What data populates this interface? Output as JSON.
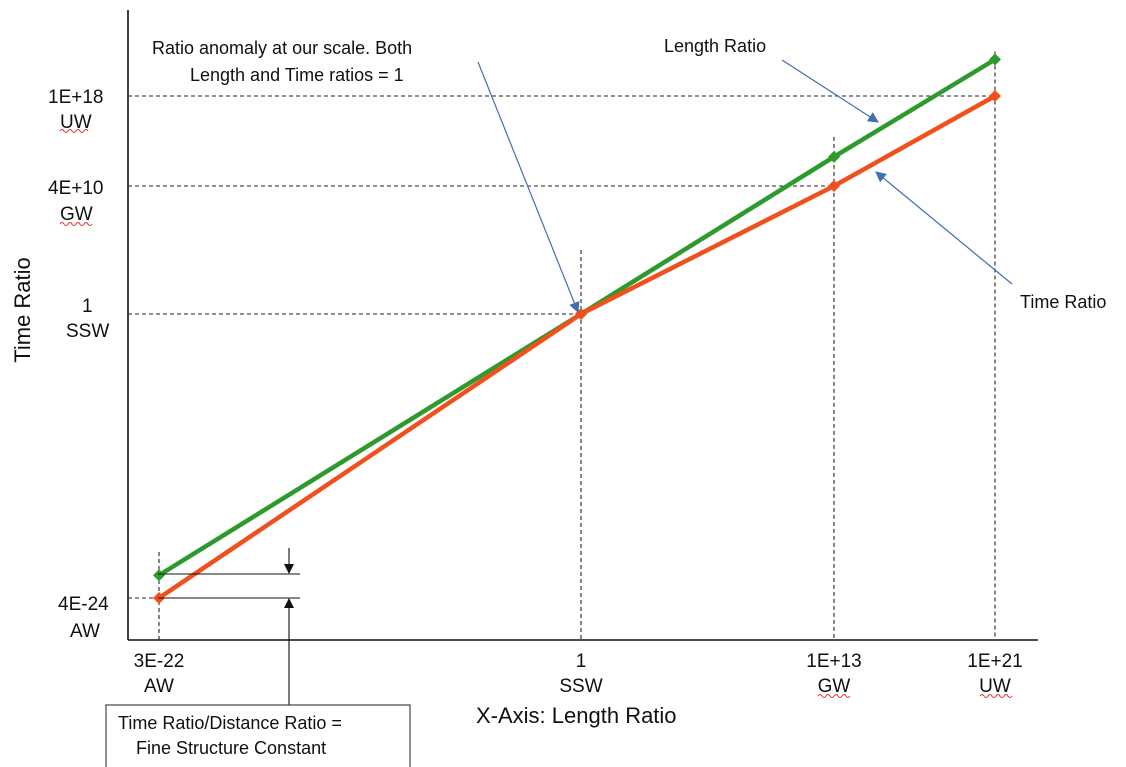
{
  "chart_data": {
    "type": "line",
    "title": "",
    "xlabel": "X-Axis: Length Ratio",
    "ylabel": "Time Ratio",
    "x_scale": "log",
    "y_scale": "log",
    "grid": false,
    "legend": "none",
    "x_ticks": [
      {
        "value": 3e-22,
        "line1": "3E-22",
        "line2": "AW"
      },
      {
        "value": 1,
        "line1": "1",
        "line2": "SSW"
      },
      {
        "value": 10000000000000.0,
        "line1": "1E+13",
        "line2": "GW"
      },
      {
        "value": 1e+21,
        "line1": "1E+21",
        "line2": "UW"
      }
    ],
    "y_ticks": [
      {
        "value": 4e-24,
        "line1": "4E-24",
        "line2": "AW"
      },
      {
        "value": 1,
        "line1": "1",
        "line2": "SSW"
      },
      {
        "value": 40000000000.0,
        "line1": "4E+10",
        "line2": "GW"
      },
      {
        "value": 1e+18,
        "line1": "1E+18",
        "line2": "UW"
      }
    ],
    "series": [
      {
        "name": "Length Ratio",
        "color": "#2e9a2e",
        "marker": "diamond",
        "points": [
          [
            3e-22,
            3e-22
          ],
          [
            1,
            1
          ],
          [
            10000000000000.0,
            10000000000000.0
          ],
          [
            1e+21,
            1e+21
          ]
        ]
      },
      {
        "name": "Time Ratio",
        "color": "#f0501e",
        "marker": "diamond",
        "points": [
          [
            3e-22,
            4e-24
          ],
          [
            1,
            1
          ],
          [
            10000000000000.0,
            40000000000.0
          ],
          [
            1e+21,
            1e+18
          ]
        ]
      }
    ],
    "annotations": {
      "anomaly": [
        "Ratio anomaly at our scale.  Both",
        "Length and Time ratios = 1"
      ],
      "length_ratio": "Length Ratio",
      "time_ratio": "Time Ratio",
      "fine_structure": [
        "Time Ratio/Distance Ratio =",
        "Fine Structure Constant"
      ]
    },
    "colors": {
      "callout_arrow": "#3f6fb0",
      "spellcheck_underline": "#e03030"
    }
  }
}
